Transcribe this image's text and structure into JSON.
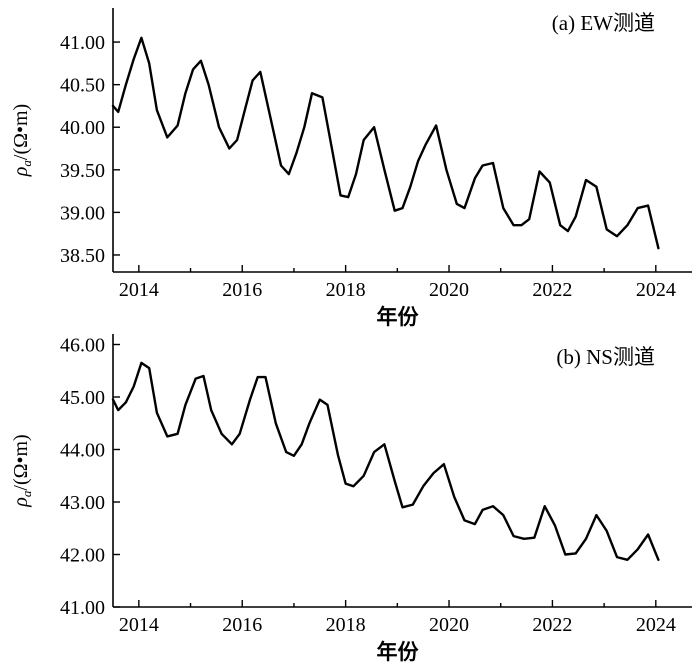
{
  "chart_data": [
    {
      "type": "line",
      "title": "(a) EW测道",
      "xlabel": "年份",
      "ylabel": "ρ",
      "ylabel_subscript": "a",
      "ylabel_unit": "/(Ω•m)",
      "xlim": [
        2013.5,
        2024.7
      ],
      "ylim": [
        38.3,
        41.4
      ],
      "xticks": [
        2014,
        2016,
        2018,
        2020,
        2022,
        2024
      ],
      "yticks": [
        38.5,
        39.0,
        39.5,
        40.0,
        40.5,
        41.0
      ],
      "ytick_labels": [
        "38.50",
        "39.00",
        "39.50",
        "40.00",
        "40.50",
        "41.00"
      ],
      "series": [
        {
          "x": [
            2013.5,
            2013.6,
            2013.75,
            2013.9,
            2014.05,
            2014.2,
            2014.35,
            2014.55,
            2014.75,
            2014.9,
            2015.05,
            2015.2,
            2015.35,
            2015.55,
            2015.75,
            2015.9,
            2016.05,
            2016.2,
            2016.35,
            2016.55,
            2016.75,
            2016.9,
            2017.05,
            2017.2,
            2017.35,
            2017.55,
            2017.75,
            2017.9,
            2018.05,
            2018.2,
            2018.35,
            2018.55,
            2018.75,
            2018.95,
            2019.1,
            2019.25,
            2019.4,
            2019.55,
            2019.75,
            2019.95,
            2020.15,
            2020.3,
            2020.5,
            2020.65,
            2020.85,
            2021.05,
            2021.25,
            2021.4,
            2021.55,
            2021.75,
            2021.95,
            2022.15,
            2022.3,
            2022.45,
            2022.65,
            2022.85,
            2023.05,
            2023.25,
            2023.45,
            2023.65,
            2023.85,
            2024.05
          ],
          "y": [
            40.25,
            40.18,
            40.5,
            40.8,
            41.05,
            40.75,
            40.2,
            39.88,
            40.02,
            40.4,
            40.68,
            40.78,
            40.5,
            40.0,
            39.75,
            39.85,
            40.2,
            40.55,
            40.65,
            40.1,
            39.55,
            39.45,
            39.7,
            40.0,
            40.4,
            40.35,
            39.7,
            39.2,
            39.18,
            39.45,
            39.85,
            40.0,
            39.5,
            39.02,
            39.05,
            39.3,
            39.6,
            39.8,
            40.02,
            39.5,
            39.1,
            39.05,
            39.4,
            39.55,
            39.58,
            39.05,
            38.85,
            38.85,
            38.92,
            39.48,
            39.35,
            38.85,
            38.78,
            38.95,
            39.38,
            39.3,
            38.8,
            38.72,
            38.85,
            39.05,
            39.08,
            38.58
          ]
        }
      ]
    },
    {
      "type": "line",
      "title": "(b) NS测道",
      "xlabel": "年份",
      "ylabel": "ρ",
      "ylabel_subscript": "a",
      "ylabel_unit": "/(Ω•m)",
      "xlim": [
        2013.5,
        2024.7
      ],
      "ylim": [
        41.0,
        46.2
      ],
      "xticks": [
        2014,
        2016,
        2018,
        2020,
        2022,
        2024
      ],
      "yticks": [
        41.0,
        42.0,
        43.0,
        44.0,
        45.0,
        46.0
      ],
      "ytick_labels": [
        "41.00",
        "42.00",
        "43.00",
        "44.00",
        "45.00",
        "46.00"
      ],
      "series": [
        {
          "x": [
            2013.5,
            2013.6,
            2013.75,
            2013.9,
            2014.05,
            2014.2,
            2014.35,
            2014.55,
            2014.75,
            2014.9,
            2015.1,
            2015.25,
            2015.4,
            2015.6,
            2015.8,
            2015.95,
            2016.15,
            2016.3,
            2016.45,
            2016.65,
            2016.85,
            2017.0,
            2017.15,
            2017.3,
            2017.5,
            2017.65,
            2017.85,
            2018.0,
            2018.15,
            2018.35,
            2018.55,
            2018.75,
            2018.95,
            2019.1,
            2019.3,
            2019.5,
            2019.7,
            2019.9,
            2020.1,
            2020.3,
            2020.5,
            2020.65,
            2020.85,
            2021.05,
            2021.25,
            2021.45,
            2021.65,
            2021.85,
            2022.05,
            2022.25,
            2022.45,
            2022.65,
            2022.85,
            2023.05,
            2023.25,
            2023.45,
            2023.65,
            2023.85,
            2024.05
          ],
          "y": [
            44.95,
            44.75,
            44.9,
            45.2,
            45.65,
            45.55,
            44.7,
            44.25,
            44.3,
            44.85,
            45.35,
            45.4,
            44.75,
            44.3,
            44.1,
            44.3,
            44.95,
            45.38,
            45.38,
            44.5,
            43.95,
            43.88,
            44.1,
            44.5,
            44.95,
            44.85,
            43.9,
            43.35,
            43.3,
            43.5,
            43.95,
            44.1,
            43.4,
            42.9,
            42.95,
            43.3,
            43.55,
            43.72,
            43.1,
            42.65,
            42.58,
            42.85,
            42.92,
            42.75,
            42.35,
            42.3,
            42.32,
            42.92,
            42.55,
            42.0,
            42.02,
            42.3,
            42.75,
            42.45,
            41.95,
            41.9,
            42.1,
            42.38,
            41.9
          ]
        }
      ]
    }
  ]
}
